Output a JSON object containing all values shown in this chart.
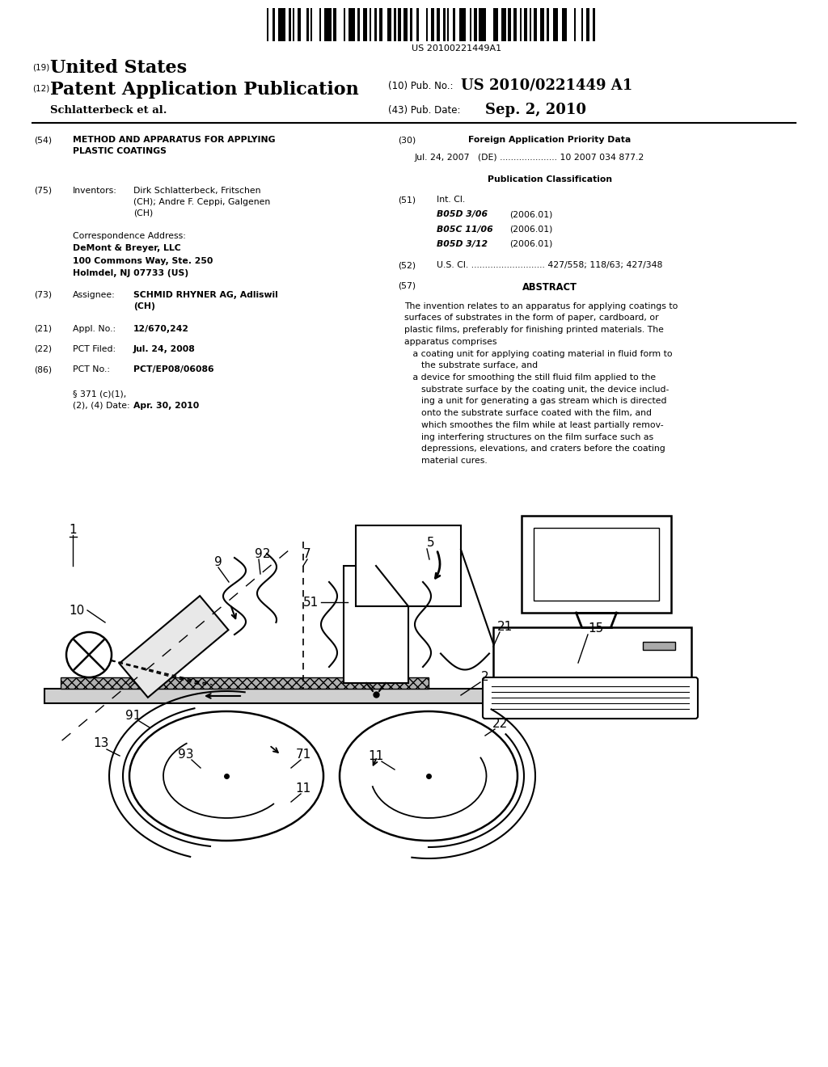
{
  "bg_color": "#ffffff",
  "barcode_text": "US 20100221449A1",
  "title_19_sup": "(19)",
  "title_19_text": "United States",
  "title_12_sup": "(12)",
  "title_12_text": "Patent Application Publication",
  "title_10": "(10) Pub. No.:",
  "pub_no": "US 2010/0221449 A1",
  "author_line": "Schlatterbeck et al.",
  "pub_date_label": "(43) Pub. Date:",
  "pub_date": "Sep. 2, 2010",
  "field54_label": "(54)",
  "field54_a": "METHOD AND APPARATUS FOR APPLYING",
  "field54_b": "PLASTIC COATINGS",
  "field75_label": "(75)",
  "field75_title": "Inventors:",
  "field75_text": "Dirk Schlatterbeck, Fritschen\n(CH); Andre F. Ceppi, Galgenen\n(CH)",
  "corr_title": "Correspondence Address:",
  "corr_line1": "DeMont & Breyer, LLC",
  "corr_line2": "100 Commons Way, Ste. 250",
  "corr_line3": "Holmdel, NJ 07733 (US)",
  "field73_label": "(73)",
  "field73_title": "Assignee:",
  "field73_text": "SCHMID RHYNER AG, Adliswil\n(CH)",
  "field21_label": "(21)",
  "field21_title": "Appl. No.:",
  "field21_text": "12/670,242",
  "field22_label": "(22)",
  "field22_title": "PCT Filed:",
  "field22_text": "Jul. 24, 2008",
  "field86_label": "(86)",
  "field86_title": "PCT No.:",
  "field86_text": "PCT/EP08/06086",
  "field86b_text1": "§ 371 (c)(1),",
  "field86b_text2": "(2), (4) Date:",
  "field86b_val": "Apr. 30, 2010",
  "field30_label": "(30)",
  "field30_title": "Foreign Application Priority Data",
  "field30_text": "Jul. 24, 2007   (DE) ..................... 10 2007 034 877.2",
  "pub_class_title": "Publication Classification",
  "field51_label": "(51)",
  "field51_title": "Int. Cl.",
  "field51_codes": [
    "B05D 3/06",
    "B05C 11/06",
    "B05D 3/12"
  ],
  "field51_years": [
    "(2006.01)",
    "(2006.01)",
    "(2006.01)"
  ],
  "field52_label": "(52)",
  "field52_text": "U.S. Cl. ........................... 427/558; 118/63; 427/348",
  "field57_label": "(57)",
  "field57_title": "ABSTRACT",
  "abstract_lines": [
    "The invention relates to an apparatus for applying coatings to",
    "surfaces of substrates in the form of paper, cardboard, or",
    "plastic films, preferably for finishing printed materials. The",
    "apparatus comprises",
    "   a coating unit for applying coating material in fluid form to",
    "      the substrate surface, and",
    "   a device for smoothing the still fluid film applied to the",
    "      substrate surface by the coating unit, the device includ-",
    "      ing a unit for generating a gas stream which is directed",
    "      onto the substrate surface coated with the film, and",
    "      which smoothes the film while at least partially remov-",
    "      ing interfering structures on the film surface such as",
    "      depressions, elevations, and craters before the coating",
    "      material cures."
  ]
}
